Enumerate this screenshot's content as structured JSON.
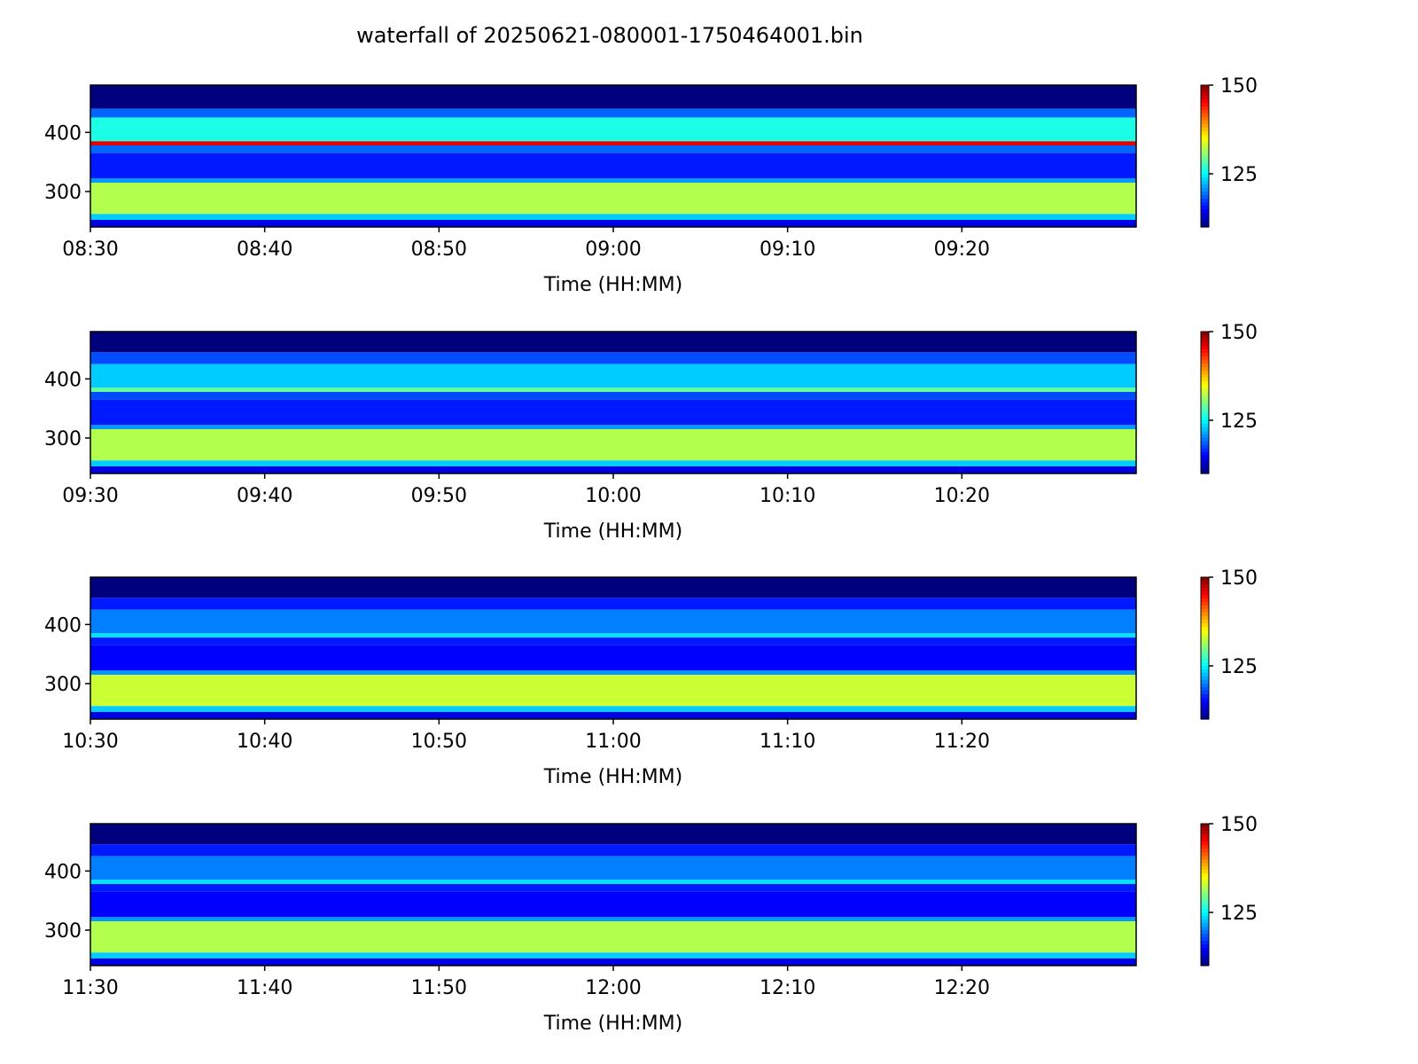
{
  "figure": {
    "title": "waterfall of 20250621-080001-1750464001.bin"
  },
  "colormap": {
    "name": "jet",
    "stops": [
      "#00007f",
      "#0000ff",
      "#0080ff",
      "#00ffff",
      "#80ff80",
      "#ffff00",
      "#ff8000",
      "#ff0000",
      "#7f0000"
    ]
  },
  "chart_data": [
    {
      "type": "heatmap",
      "xlabel": "Time (HH:MM)",
      "ylabel": "",
      "x_range": [
        "08:30",
        "09:30"
      ],
      "x_ticks": [
        "08:30",
        "08:40",
        "08:50",
        "09:00",
        "09:10",
        "09:20"
      ],
      "ylim": [
        240,
        480
      ],
      "y_ticks": [
        300,
        400
      ],
      "colorbar": {
        "range": [
          110,
          150
        ],
        "ticks": [
          125,
          150
        ]
      },
      "bands": [
        {
          "y": [
            440,
            480
          ],
          "value": 110
        },
        {
          "y": [
            425,
            440
          ],
          "value": 119
        },
        {
          "y": [
            385,
            425
          ],
          "value": 126
        },
        {
          "y": [
            378,
            385
          ],
          "value": 146
        },
        {
          "y": [
            365,
            378
          ],
          "value": 119
        },
        {
          "y": [
            322,
            365
          ],
          "value": 116
        },
        {
          "y": [
            315,
            322
          ],
          "value": 121
        },
        {
          "y": [
            262,
            315
          ],
          "value": 132
        },
        {
          "y": [
            252,
            262
          ],
          "value": 123
        },
        {
          "y": [
            240,
            252
          ],
          "value": 114
        }
      ]
    },
    {
      "type": "heatmap",
      "xlabel": "Time (HH:MM)",
      "ylabel": "",
      "x_range": [
        "09:30",
        "10:30"
      ],
      "x_ticks": [
        "09:30",
        "09:40",
        "09:50",
        "10:00",
        "10:10",
        "10:20"
      ],
      "ylim": [
        240,
        480
      ],
      "y_ticks": [
        300,
        400
      ],
      "colorbar": {
        "range": [
          110,
          150
        ],
        "ticks": [
          125,
          150
        ]
      },
      "bands": [
        {
          "y": [
            445,
            480
          ],
          "value": 110
        },
        {
          "y": [
            425,
            445
          ],
          "value": 118
        },
        {
          "y": [
            385,
            425
          ],
          "value": 123
        },
        {
          "y": [
            378,
            385
          ],
          "value": 129
        },
        {
          "y": [
            365,
            378
          ],
          "value": 118
        },
        {
          "y": [
            322,
            365
          ],
          "value": 116
        },
        {
          "y": [
            315,
            322
          ],
          "value": 121
        },
        {
          "y": [
            262,
            315
          ],
          "value": 132
        },
        {
          "y": [
            252,
            262
          ],
          "value": 123
        },
        {
          "y": [
            240,
            252
          ],
          "value": 114
        }
      ]
    },
    {
      "type": "heatmap",
      "xlabel": "Time (HH:MM)",
      "ylabel": "",
      "x_range": [
        "10:30",
        "11:30"
      ],
      "x_ticks": [
        "10:30",
        "10:40",
        "10:50",
        "11:00",
        "11:10",
        "11:20"
      ],
      "ylim": [
        240,
        480
      ],
      "y_ticks": [
        300,
        400
      ],
      "colorbar": {
        "range": [
          110,
          150
        ],
        "ticks": [
          125,
          150
        ]
      },
      "bands": [
        {
          "y": [
            445,
            480
          ],
          "value": 110
        },
        {
          "y": [
            425,
            445
          ],
          "value": 116
        },
        {
          "y": [
            385,
            425
          ],
          "value": 120
        },
        {
          "y": [
            378,
            385
          ],
          "value": 124
        },
        {
          "y": [
            365,
            378
          ],
          "value": 116
        },
        {
          "y": [
            322,
            365
          ],
          "value": 115
        },
        {
          "y": [
            315,
            322
          ],
          "value": 121
        },
        {
          "y": [
            262,
            315
          ],
          "value": 133
        },
        {
          "y": [
            252,
            262
          ],
          "value": 123
        },
        {
          "y": [
            240,
            252
          ],
          "value": 114
        }
      ]
    },
    {
      "type": "heatmap",
      "xlabel": "Time (HH:MM)",
      "ylabel": "",
      "x_range": [
        "11:30",
        "12:30"
      ],
      "x_ticks": [
        "11:30",
        "11:40",
        "11:50",
        "12:00",
        "12:10",
        "12:20"
      ],
      "ylim": [
        240,
        480
      ],
      "y_ticks": [
        300,
        400
      ],
      "colorbar": {
        "range": [
          110,
          150
        ],
        "ticks": [
          125,
          150
        ]
      },
      "bands": [
        {
          "y": [
            445,
            480
          ],
          "value": 110
        },
        {
          "y": [
            425,
            445
          ],
          "value": 116
        },
        {
          "y": [
            385,
            425
          ],
          "value": 120
        },
        {
          "y": [
            378,
            385
          ],
          "value": 124
        },
        {
          "y": [
            365,
            378
          ],
          "value": 116
        },
        {
          "y": [
            322,
            365
          ],
          "value": 115
        },
        {
          "y": [
            315,
            322
          ],
          "value": 121
        },
        {
          "y": [
            262,
            315
          ],
          "value": 132
        },
        {
          "y": [
            252,
            262
          ],
          "value": 123
        },
        {
          "y": [
            240,
            252
          ],
          "value": 114
        }
      ]
    }
  ]
}
